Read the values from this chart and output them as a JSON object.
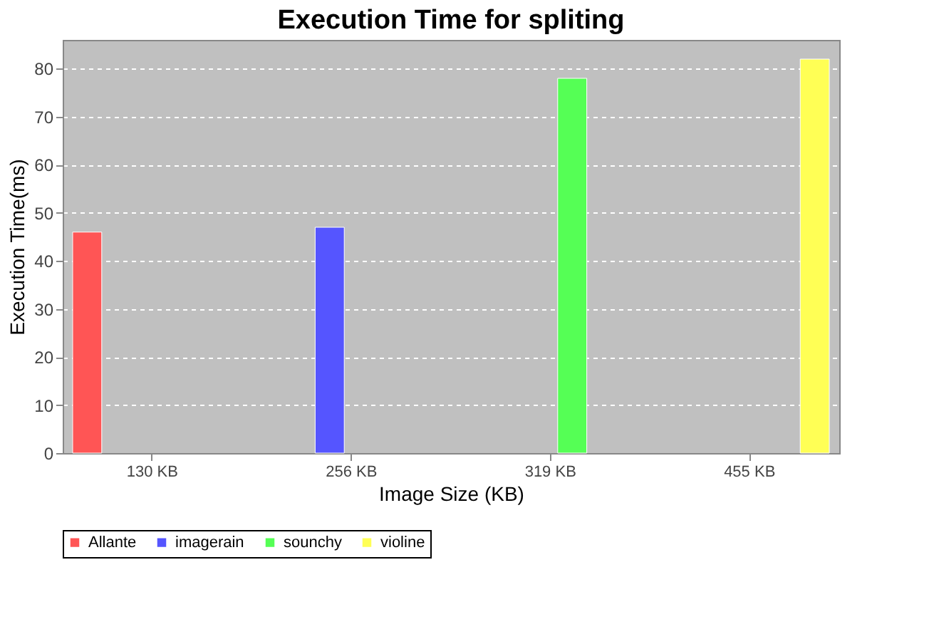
{
  "chart_data": {
    "type": "bar",
    "title": "Execution Time for spliting",
    "xlabel": "Image Size (KB)",
    "ylabel": "Execution Time(ms)",
    "categories": [
      "130 KB",
      "256 KB",
      "319 KB",
      "455 KB"
    ],
    "series": [
      {
        "name": "Allante",
        "color": "#ff5555",
        "values": [
          46,
          null,
          null,
          null
        ]
      },
      {
        "name": "imagerain",
        "color": "#5555ff",
        "values": [
          null,
          47,
          null,
          null
        ]
      },
      {
        "name": "sounchy",
        "color": "#55ff55",
        "values": [
          null,
          null,
          78,
          null
        ]
      },
      {
        "name": "violine",
        "color": "#ffff55",
        "values": [
          null,
          null,
          null,
          82
        ]
      }
    ],
    "ylim": [
      0,
      86
    ],
    "yticks": [
      0,
      10,
      20,
      30,
      40,
      50,
      60,
      70,
      80
    ],
    "grid": "y",
    "legend": "bottom"
  }
}
